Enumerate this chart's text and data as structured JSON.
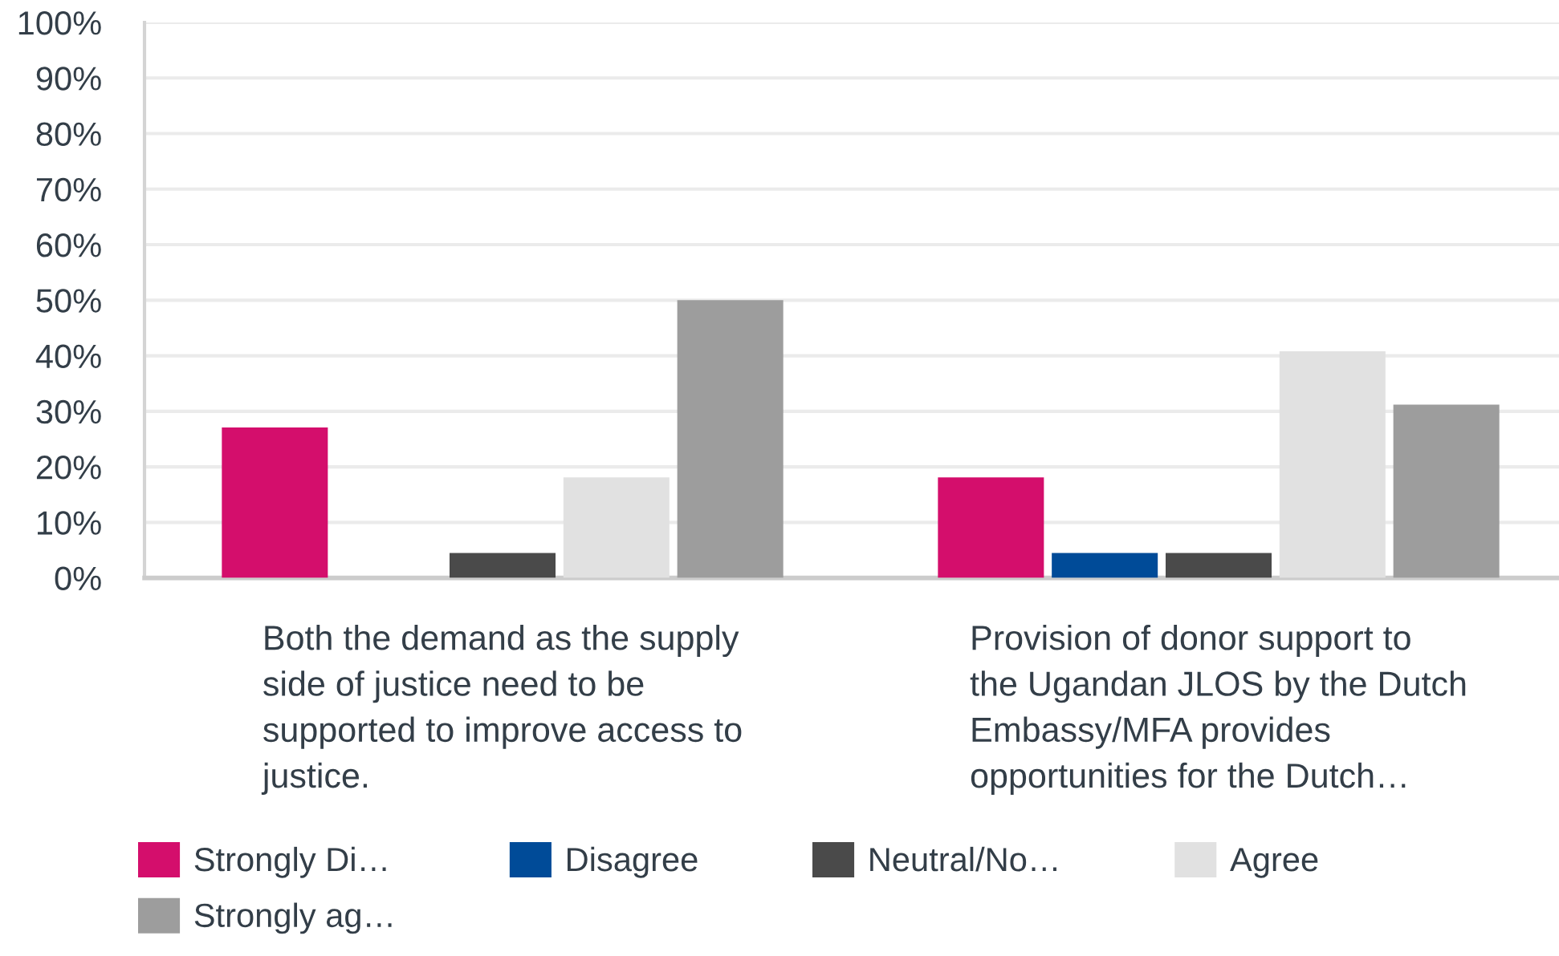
{
  "chart_data": {
    "type": "bar",
    "categories": [
      "Both the demand as the supply\nside of justice need to be\nsupported to improve access to\njustice.",
      "Provision of donor support to\nthe Ugandan JLOS by the Dutch\nEmbassy/MFA provides\nopportunities for the Dutch…"
    ],
    "series": [
      {
        "name": "Strongly Di…",
        "color": "#d40e6c",
        "values": [
          27.1,
          18.1
        ]
      },
      {
        "name": "Disagree",
        "color": "#004b98",
        "values": [
          0,
          4.5
        ]
      },
      {
        "name": "Neutral/No…",
        "color": "#4a4a4a",
        "values": [
          4.5,
          4.5
        ]
      },
      {
        "name": "Agree",
        "color": "#e1e1e1",
        "values": [
          18.1,
          40.8
        ]
      },
      {
        "name": "Strongly ag…",
        "color": "#9d9d9d",
        "values": [
          50,
          31.2
        ]
      }
    ],
    "ylim": [
      0,
      100
    ],
    "yticks": [
      {
        "value": 0,
        "label": "0%"
      },
      {
        "value": 10,
        "label": "10%"
      },
      {
        "value": 20,
        "label": "20%"
      },
      {
        "value": 30,
        "label": "30%"
      },
      {
        "value": 40,
        "label": "40%"
      },
      {
        "value": 50,
        "label": "50%"
      },
      {
        "value": 60,
        "label": "60%"
      },
      {
        "value": 70,
        "label": "70%"
      },
      {
        "value": 80,
        "label": "80%"
      },
      {
        "value": 90,
        "label": "90%"
      },
      {
        "value": 100,
        "label": "100%"
      }
    ],
    "grid": "y",
    "legend": "bottom"
  }
}
